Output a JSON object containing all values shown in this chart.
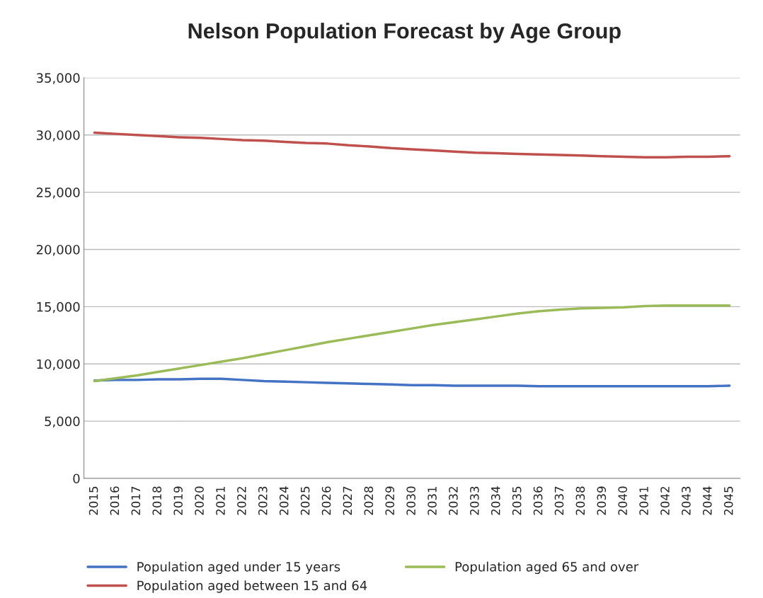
{
  "chart_data": {
    "type": "line",
    "title": "Nelson Population Forecast by Age Group",
    "categories": [
      "2015",
      "2016",
      "2017",
      "2018",
      "2019",
      "2020",
      "2021",
      "2022",
      "2023",
      "2024",
      "2025",
      "2026",
      "2027",
      "2028",
      "2029",
      "2030",
      "2031",
      "2032",
      "2033",
      "2034",
      "2035",
      "2036",
      "2037",
      "2038",
      "2039",
      "2040",
      "2041",
      "2042",
      "2043",
      "2044",
      "2045"
    ],
    "series": [
      {
        "name": "Population aged under 15 years",
        "color": "#4472c4",
        "values": [
          8550,
          8600,
          8600,
          8650,
          8650,
          8700,
          8700,
          8600,
          8500,
          8450,
          8400,
          8350,
          8300,
          8250,
          8200,
          8150,
          8150,
          8100,
          8100,
          8100,
          8100,
          8050,
          8050,
          8050,
          8050,
          8050,
          8050,
          8050,
          8050,
          8050,
          8100
        ]
      },
      {
        "name": "Population aged between 15 and 64",
        "color": "#c0504d",
        "values": [
          30200,
          30100,
          30000,
          29900,
          29800,
          29750,
          29650,
          29550,
          29500,
          29400,
          29300,
          29250,
          29100,
          29000,
          28850,
          28750,
          28650,
          28550,
          28450,
          28400,
          28350,
          28300,
          28250,
          28200,
          28150,
          28100,
          28050,
          28050,
          28100,
          28100,
          28150
        ]
      },
      {
        "name": "Population aged 65 and over",
        "color": "#9bbb59",
        "values": [
          8500,
          8750,
          9000,
          9300,
          9600,
          9900,
          10200,
          10500,
          10850,
          11200,
          11550,
          11900,
          12200,
          12500,
          12800,
          13100,
          13400,
          13650,
          13900,
          14150,
          14400,
          14600,
          14750,
          14850,
          14900,
          14950,
          15050,
          15100,
          15100,
          15100,
          15100
        ]
      }
    ],
    "ylim": [
      0,
      35000
    ],
    "yticks": [
      {
        "value": 0,
        "label": "0"
      },
      {
        "value": 5000,
        "label": "5,000"
      },
      {
        "value": 10000,
        "label": "10,000"
      },
      {
        "value": 15000,
        "label": "15,000"
      },
      {
        "value": 20000,
        "label": "20,000"
      },
      {
        "value": 25000,
        "label": "25,000"
      },
      {
        "value": 30000,
        "label": "30,000"
      },
      {
        "value": 35000,
        "label": "35,000"
      }
    ],
    "grid": "y",
    "legend": "bottom",
    "marker": "none",
    "line_style": "solid"
  }
}
